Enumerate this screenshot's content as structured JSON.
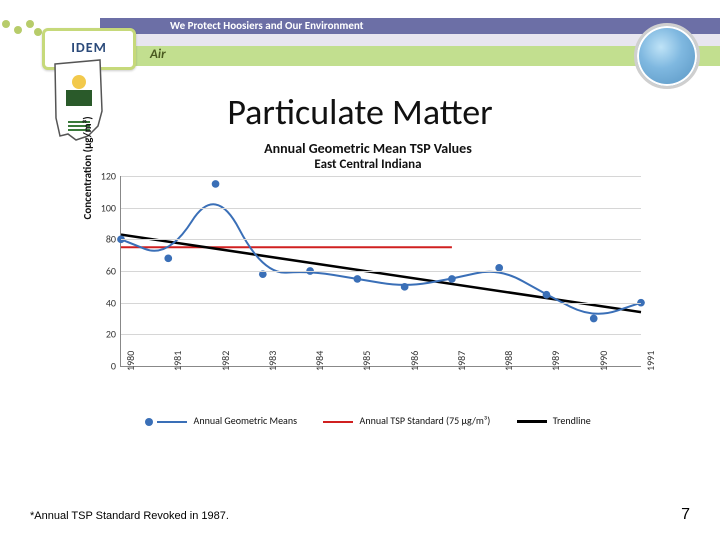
{
  "header": {
    "brand": "IDEM",
    "tagline": "We Protect Hoosiers and Our Environment",
    "section": "Air"
  },
  "page_title": "Particulate Matter",
  "footnote": "*Annual TSP Standard Revoked in 1987.",
  "page_number": "7",
  "chart": {
    "type": "line",
    "title": "Annual Geometric Mean TSP Values",
    "subtitle": "East Central Indiana",
    "ylabel": "Concentration (µg/m³)",
    "ylim": [
      0,
      120
    ],
    "ytick_step": 20,
    "yticks": [
      "0",
      "20",
      "40",
      "60",
      "80",
      "100",
      "120"
    ],
    "categories": [
      "1980",
      "1981",
      "1982",
      "1983",
      "1984",
      "1985",
      "1986",
      "1987",
      "1988",
      "1989",
      "1990",
      "1991"
    ],
    "series": {
      "means": {
        "label": "Annual Geometric Means",
        "color": "#3a6fb7",
        "line_width": 2,
        "marker": "circle",
        "marker_size": 5,
        "values": [
          80,
          68,
          115,
          58,
          60,
          55,
          50,
          55,
          62,
          45,
          30,
          40
        ]
      },
      "standard": {
        "label": "Annual TSP Standard (75 µg/m³)",
        "color": "#d02020",
        "line_width": 2,
        "value": 75,
        "x_end_index": 7
      },
      "trend": {
        "label": "Trendline",
        "color": "#000000",
        "line_width": 2.5,
        "y_start": 83,
        "y_end": 34
      }
    },
    "background_color": "#ffffff",
    "grid_color": "#d6d6d6",
    "axis_color": "#888888",
    "label_fontsize": 10,
    "title_fontsize": 14
  }
}
